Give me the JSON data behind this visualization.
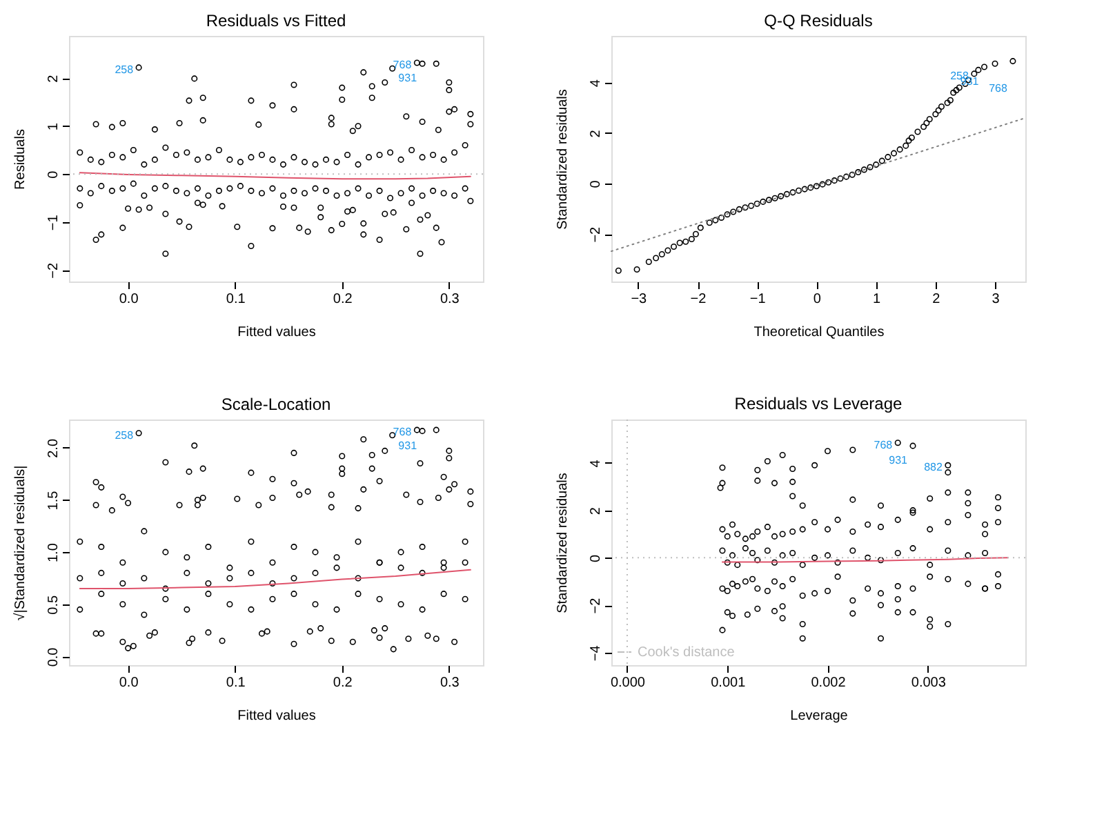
{
  "chart_data": [
    {
      "type": "scatter",
      "title": "Residuals vs Fitted",
      "xlabel": "Fitted values",
      "ylabel": "Residuals",
      "grid": false,
      "xlim": [
        -0.0552,
        0.3317
      ],
      "ylim": [
        -2.24,
        2.88
      ],
      "xticks": [
        {
          "value": 0,
          "label": "0.0"
        },
        {
          "value": 0.1,
          "label": "0.1"
        },
        {
          "value": 0.2,
          "label": "0.2"
        },
        {
          "value": 0.3,
          "label": "0.3"
        }
      ],
      "yticks": [
        -2,
        -1,
        0,
        1,
        2
      ],
      "ref_lines": [
        {
          "axis": "y",
          "value": 0,
          "color": "#bebebe",
          "line_style": "dotted"
        }
      ],
      "annotations": [
        {
          "text": "258",
          "x": 0.01,
          "y": 2.22
        },
        {
          "text": "768",
          "x": 0.27,
          "y": 2.32
        },
        {
          "text": "931",
          "x": 0.275,
          "y": 2.3
        }
      ],
      "series": [
        {
          "type": "scatter",
          "color": "#000000",
          "x": [
            0.01,
            0.062,
            0.057,
            0.07,
            0.155,
            0.155,
            0.115,
            0.135,
            0.2,
            0.2,
            0.22,
            0.228,
            0.228,
            0.24,
            0.247,
            0.27,
            0.275,
            0.288,
            0.3,
            0.3,
            0.305,
            0.3,
            0.32,
            0.32,
            -0.03,
            -0.015,
            -0.005,
            0.048,
            0.122,
            0.19,
            0.19,
            0.21,
            0.215,
            0.26,
            0.275,
            0.29,
            0.07,
            0.025,
            -0.03,
            -0.025,
            -0.005,
            0.035,
            0.048,
            0.057,
            0.102,
            0.115,
            0.135,
            0.16,
            0.168,
            0.18,
            0.19,
            0.2,
            0.22,
            0.22,
            0.235,
            0.26,
            0.273,
            0.273,
            0.288,
            0.293,
            0.24,
            0.035,
            -0.045,
            0.0,
            0.01,
            0.02,
            0.065,
            0.07,
            0.088,
            0.145,
            0.155,
            0.18,
            0.205,
            0.21,
            0.248,
            0.265,
            0.28,
            0.32,
            -0.045,
            -0.035,
            -0.025,
            -0.015,
            -0.005,
            0.005,
            0.015,
            0.025,
            0.035,
            0.045,
            0.055,
            0.065,
            0.075,
            0.085,
            0.095,
            0.105,
            0.115,
            0.125,
            0.135,
            0.145,
            0.155,
            0.165,
            0.175,
            0.185,
            0.195,
            0.205,
            0.215,
            0.225,
            0.235,
            0.245,
            0.255,
            0.265,
            0.275,
            0.285,
            0.295,
            0.305,
            0.315,
            -0.045,
            -0.035,
            -0.025,
            -0.015,
            -0.005,
            0.005,
            0.015,
            0.025,
            0.035,
            0.045,
            0.055,
            0.065,
            0.075,
            0.085,
            0.095,
            0.105,
            0.115,
            0.125,
            0.135,
            0.145,
            0.155,
            0.165,
            0.175,
            0.185,
            0.195,
            0.205,
            0.215,
            0.225,
            0.235,
            0.245,
            0.255,
            0.265,
            0.275,
            0.285,
            0.295,
            0.305,
            0.315
          ],
          "values": [
            2.22,
            1.99,
            1.53,
            1.59,
            1.86,
            1.35,
            1.53,
            1.43,
            1.8,
            1.55,
            2.12,
            1.83,
            1.59,
            1.91,
            2.2,
            2.32,
            2.3,
            2.3,
            1.91,
            1.75,
            1.35,
            1.3,
            1.25,
            1.04,
            1.04,
            0.98,
            1.06,
            1.06,
            1.03,
            1.17,
            1.04,
            0.9,
            1.0,
            1.2,
            1.09,
            0.92,
            1.12,
            0.93,
            -1.37,
            -1.26,
            -1.12,
            -1.66,
            -0.99,
            -1.1,
            -1.1,
            -1.5,
            -1.13,
            -1.12,
            -1.2,
            -0.9,
            -1.17,
            -1.04,
            -1.26,
            -1.03,
            -1.37,
            -1.15,
            -1.66,
            -0.95,
            -1.12,
            -1.42,
            -0.83,
            -0.83,
            -0.65,
            -0.72,
            -0.74,
            -0.7,
            -0.6,
            -0.64,
            -0.67,
            -0.68,
            -0.7,
            -0.7,
            -0.78,
            -0.75,
            -0.8,
            -0.6,
            -0.86,
            -0.56,
            0.45,
            0.3,
            0.25,
            0.4,
            0.35,
            0.5,
            0.2,
            0.3,
            0.55,
            0.4,
            0.45,
            0.3,
            0.35,
            0.5,
            0.3,
            0.25,
            0.35,
            0.4,
            0.3,
            0.2,
            0.35,
            0.25,
            0.2,
            0.3,
            0.25,
            0.4,
            0.2,
            0.35,
            0.4,
            0.45,
            0.3,
            0.5,
            0.35,
            0.4,
            0.3,
            0.45,
            0.6,
            -0.3,
            -0.4,
            -0.25,
            -0.35,
            -0.3,
            -0.2,
            -0.45,
            -0.3,
            -0.25,
            -0.35,
            -0.4,
            -0.3,
            -0.45,
            -0.35,
            -0.3,
            -0.25,
            -0.35,
            -0.4,
            -0.3,
            -0.45,
            -0.35,
            -0.4,
            -0.3,
            -0.35,
            -0.45,
            -0.4,
            -0.3,
            -0.45,
            -0.35,
            -0.5,
            -0.4,
            -0.3,
            -0.45,
            -0.35,
            -0.4,
            -0.45,
            -0.3
          ]
        },
        {
          "type": "line",
          "color": "#df536b",
          "line_style": "solid",
          "x": [
            -0.045,
            0.0,
            0.05,
            0.1,
            0.15,
            0.2,
            0.25,
            0.28,
            0.32
          ],
          "values": [
            0.03,
            -0.01,
            -0.03,
            -0.05,
            -0.08,
            -0.1,
            -0.1,
            -0.09,
            -0.05
          ]
        }
      ]
    },
    {
      "type": "scatter",
      "title": "Q-Q Residuals",
      "xlabel": "Theoretical Quantiles",
      "ylabel": "Standardized residuals",
      "grid": false,
      "xlim": [
        -3.45,
        3.51
      ],
      "ylim": [
        -3.88,
        5.85
      ],
      "xticks": [
        -3,
        -2,
        -1,
        0,
        1,
        2,
        3
      ],
      "yticks": [
        -2,
        0,
        2,
        4
      ],
      "annotations": [
        {
          "text": "258",
          "x": 2.65,
          "y": 4.35
        },
        {
          "text": "931",
          "x": 2.82,
          "y": 4.62
        },
        {
          "text": "768",
          "x": 3.3,
          "y": 4.85
        }
      ],
      "series": [
        {
          "type": "scatter",
          "color": "#000000",
          "x": [
            -3.33,
            -3.02,
            -2.82,
            -2.7,
            -2.6,
            -2.5,
            -2.4,
            -2.3,
            -2.2,
            -2.1,
            -2.03,
            -1.95,
            -1.8,
            -1.7,
            -1.6,
            -1.5,
            -1.4,
            -1.3,
            -1.2,
            -1.1,
            -1.0,
            -0.9,
            -0.8,
            -0.7,
            -0.6,
            -0.5,
            -0.4,
            -0.3,
            -0.2,
            -0.1,
            0,
            0.1,
            0.2,
            0.3,
            0.4,
            0.5,
            0.6,
            0.7,
            0.8,
            0.9,
            1.0,
            1.1,
            1.2,
            1.3,
            1.4,
            1.5,
            1.55,
            1.6,
            1.7,
            1.8,
            1.85,
            1.9,
            2.0,
            2.05,
            2.1,
            2.2,
            2.25,
            2.3,
            2.35,
            2.4,
            2.5,
            2.55,
            2.65,
            2.72,
            2.82,
            3.0,
            3.3
          ],
          "values": [
            -3.45,
            -3.4,
            -3.1,
            -2.95,
            -2.8,
            -2.65,
            -2.5,
            -2.35,
            -2.3,
            -2.2,
            -2.0,
            -1.75,
            -1.55,
            -1.45,
            -1.35,
            -1.22,
            -1.12,
            -1.02,
            -0.95,
            -0.88,
            -0.8,
            -0.72,
            -0.65,
            -0.58,
            -0.5,
            -0.42,
            -0.35,
            -0.28,
            -0.22,
            -0.16,
            -0.1,
            -0.03,
            0.05,
            0.12,
            0.2,
            0.27,
            0.35,
            0.45,
            0.55,
            0.65,
            0.75,
            0.9,
            1.05,
            1.2,
            1.35,
            1.5,
            1.7,
            1.82,
            2.05,
            2.25,
            2.4,
            2.55,
            2.75,
            2.9,
            3.05,
            3.2,
            3.3,
            3.6,
            3.7,
            3.8,
            3.95,
            4.1,
            4.35,
            4.5,
            4.62,
            4.75,
            4.85
          ]
        },
        {
          "type": "line",
          "color": "#808080",
          "line_style": "dotted",
          "x": [
            -3.45,
            3.51
          ],
          "values": [
            -2.68,
            2.6
          ]
        }
      ]
    },
    {
      "type": "scatter",
      "title": "Scale-Location",
      "xlabel": "Fitted values",
      "ylabel": "√|Standardized residuals|",
      "grid": false,
      "xlim": [
        -0.0552,
        0.3317
      ],
      "ylim": [
        -0.083,
        2.27
      ],
      "xticks": [
        {
          "value": 0,
          "label": "0.0"
        },
        {
          "value": 0.1,
          "label": "0.1"
        },
        {
          "value": 0.2,
          "label": "0.2"
        },
        {
          "value": 0.3,
          "label": "0.3"
        }
      ],
      "yticks": [
        {
          "value": 0,
          "label": "0.0"
        },
        {
          "value": 0.5,
          "label": "0.5"
        },
        {
          "value": 1,
          "label": "1.0"
        },
        {
          "value": 1.5,
          "label": "1.5"
        },
        {
          "value": 2,
          "label": "2.0"
        }
      ],
      "annotations": [
        {
          "text": "258",
          "x": 0.01,
          "y": 2.14
        },
        {
          "text": "768",
          "x": 0.27,
          "y": 2.17
        },
        {
          "text": "931",
          "x": 0.275,
          "y": 2.16
        }
      ],
      "series": [
        {
          "type": "scatter",
          "color": "#000000",
          "x": [
            0.01,
            0.062,
            0.035,
            0.057,
            0.07,
            0.155,
            0.155,
            0.115,
            0.135,
            0.2,
            0.2,
            0.2,
            0.22,
            0.228,
            0.228,
            0.235,
            0.24,
            0.247,
            0.27,
            0.275,
            0.288,
            0.3,
            0.3,
            0.305,
            0.295,
            0.32,
            0.32,
            -0.03,
            -0.025,
            -0.03,
            -0.015,
            -0.005,
            0.0,
            0.048,
            0.065,
            0.065,
            0.07,
            0.102,
            0.122,
            0.135,
            0.16,
            0.168,
            0.19,
            0.19,
            0.215,
            0.22,
            0.26,
            0.273,
            0.273,
            0.29,
            0.3,
            -0.005,
            0.0,
            0.005,
            0.057,
            0.06,
            0.088,
            0.155,
            0.19,
            0.21,
            0.235,
            0.248,
            0.262,
            0.28,
            0.288,
            0.305,
            -0.03,
            -0.025,
            0.02,
            0.025,
            0.075,
            0.125,
            0.13,
            0.17,
            0.18,
            0.23,
            0.24,
            -0.045,
            -0.025,
            -0.005,
            0.015,
            0.035,
            0.055,
            0.075,
            0.095,
            0.115,
            0.135,
            0.155,
            0.175,
            0.195,
            0.215,
            0.235,
            0.255,
            0.275,
            0.295,
            0.315,
            -0.045,
            -0.025,
            -0.005,
            0.015,
            0.035,
            0.055,
            0.075,
            0.095,
            0.115,
            0.135,
            0.155,
            0.175,
            0.195,
            0.215,
            0.235,
            0.255,
            0.275,
            0.295,
            0.315,
            -0.045,
            -0.025,
            -0.005,
            0.015,
            0.035,
            0.055,
            0.075,
            0.095,
            0.115,
            0.135,
            0.155,
            0.175,
            0.195,
            0.215,
            0.235,
            0.255,
            0.275,
            0.295,
            0.315
          ],
          "values": [
            2.14,
            2.02,
            1.86,
            1.77,
            1.8,
            1.95,
            1.66,
            1.76,
            1.7,
            1.92,
            1.8,
            1.75,
            2.08,
            1.93,
            1.8,
            1.68,
            1.97,
            2.12,
            2.17,
            2.16,
            2.17,
            1.97,
            1.9,
            1.65,
            1.72,
            1.58,
            1.46,
            1.67,
            1.62,
            1.45,
            1.4,
            1.53,
            1.47,
            1.45,
            1.5,
            1.45,
            1.52,
            1.51,
            1.45,
            1.52,
            1.55,
            1.58,
            1.55,
            1.43,
            1.42,
            1.6,
            1.55,
            1.48,
            1.85,
            1.52,
            1.6,
            0.14,
            0.08,
            0.1,
            0.13,
            0.17,
            0.15,
            0.12,
            0.15,
            0.14,
            0.18,
            0.07,
            0.17,
            0.2,
            0.17,
            0.14,
            0.22,
            0.22,
            0.2,
            0.23,
            0.23,
            0.22,
            0.24,
            0.24,
            0.27,
            0.25,
            0.27,
            1.1,
            1.05,
            0.9,
            1.2,
            1.0,
            0.95,
            1.05,
            0.85,
            1.1,
            0.9,
            1.05,
            1.0,
            0.95,
            1.1,
            0.9,
            1.0,
            1.05,
            0.9,
            1.1,
            0.45,
            0.6,
            0.5,
            0.4,
            0.55,
            0.45,
            0.6,
            0.5,
            0.45,
            0.55,
            0.6,
            0.5,
            0.45,
            0.6,
            0.55,
            0.5,
            0.45,
            0.6,
            0.55,
            0.75,
            0.8,
            0.7,
            0.75,
            0.65,
            0.8,
            0.7,
            0.75,
            0.8,
            0.7,
            0.75,
            0.8,
            0.85,
            0.75,
            0.9,
            0.85,
            0.8,
            0.85,
            0.9
          ]
        },
        {
          "type": "line",
          "color": "#df536b",
          "line_style": "solid",
          "x": [
            -0.045,
            0.0,
            0.05,
            0.1,
            0.15,
            0.2,
            0.25,
            0.32
          ],
          "values": [
            0.65,
            0.65,
            0.66,
            0.67,
            0.7,
            0.74,
            0.77,
            0.83
          ]
        }
      ]
    },
    {
      "type": "scatter",
      "title": "Residuals vs Leverage",
      "xlabel": "Leverage",
      "ylabel": "Standardized residuals",
      "grid": false,
      "xlim": [
        -0.000158,
        0.003972
      ],
      "ylim": [
        -4.53,
        5.83
      ],
      "xticks": [
        {
          "value": 0,
          "label": "0.000"
        },
        {
          "value": 0.001,
          "label": "0.001"
        },
        {
          "value": 0.002,
          "label": "0.002"
        },
        {
          "value": 0.003,
          "label": "0.003"
        }
      ],
      "yticks": [
        -4,
        -2,
        0,
        2,
        4
      ],
      "legend": "bottom left",
      "ref_lines": [
        {
          "axis": "y",
          "value": 0,
          "color": "#bebebe",
          "line_style": "dotted"
        },
        {
          "axis": "x",
          "value": 0,
          "color": "#bebebe",
          "line_style": "dotted"
        }
      ],
      "annotations": [
        {
          "text": "768",
          "x": 0.0027,
          "y": 4.85
        },
        {
          "text": "931",
          "x": 0.00285,
          "y": 4.72
        },
        {
          "text": "882",
          "x": 0.0032,
          "y": 3.9
        }
      ],
      "series": [
        {
          "type": "scatter",
          "color": "#000000",
          "x": [
            0.00095,
            0.00095,
            0.00095,
            0.00093,
            0.001,
            0.00105,
            0.0012,
            0.0013,
            0.0013,
            0.0013,
            0.0014,
            0.00147,
            0.00147,
            0.00155,
            0.00155,
            0.00155,
            0.00165,
            0.00165,
            0.00165,
            0.00175,
            0.00175,
            0.00175,
            0.00187,
            0.002,
            0.00225,
            0.00225,
            0.00225,
            0.00253,
            0.00253,
            0.00253,
            0.0027,
            0.00285,
            0.0032,
            0.0032,
            0.0032,
            0.0032,
            0.00302,
            0.00302,
            0.00302,
            0.0034,
            0.0034,
            0.0037,
            0.0037,
            0.0037,
            0.0037,
            0.0037,
            0.00357,
            0.00357,
            0.0027,
            0.0027,
            0.00285,
            0.00285,
            0.00095,
            0.001,
            0.00105,
            0.0011,
            0.00118,
            0.00125,
            0.0013,
            0.0014,
            0.00147,
            0.00155,
            0.00165,
            0.00175,
            0.00187,
            0.002,
            0.0021,
            0.00225,
            0.0024,
            0.00253,
            0.0027,
            0.00285,
            0.00302,
            0.0032,
            0.0034,
            0.00357,
            0.00095,
            0.001,
            0.00105,
            0.0011,
            0.00118,
            0.00125,
            0.0013,
            0.0014,
            0.00147,
            0.00155,
            0.00165,
            0.00175,
            0.00187,
            0.002,
            0.0021,
            0.00225,
            0.0024,
            0.00253,
            0.0027,
            0.00285,
            0.00302,
            0.0032,
            0.0034,
            0.00357,
            0.00095,
            0.001,
            0.00105,
            0.0011,
            0.00118,
            0.00125,
            0.0013,
            0.0014,
            0.00147,
            0.00155,
            0.00165,
            0.00175,
            0.00187,
            0.002,
            0.0021,
            0.00225,
            0.0024,
            0.00253,
            0.0027,
            0.00285,
            0.00302,
            0.0032,
            0.0034,
            0.00357
          ],
          "values": [
            -3.05,
            3.8,
            3.15,
            2.95,
            -2.3,
            -2.45,
            -2.4,
            3.7,
            3.25,
            -2.15,
            4.07,
            3.15,
            -2.25,
            4.33,
            -2.55,
            -2.05,
            3.75,
            3.2,
            2.6,
            2.2,
            -2.8,
            -3.4,
            3.9,
            4.5,
            4.55,
            2.45,
            -2.35,
            2.2,
            -3.4,
            -2.0,
            4.85,
            4.72,
            3.9,
            3.6,
            2.75,
            -2.8,
            2.5,
            -2.6,
            -2.9,
            2.75,
            2.3,
            2.55,
            2.1,
            1.5,
            -1.2,
            -0.7,
            1.4,
            -1.3,
            -2.3,
            -1.75,
            -2.3,
            2.0,
            1.2,
            0.9,
            1.4,
            1.0,
            0.8,
            0.9,
            1.1,
            1.3,
            0.9,
            1.0,
            1.1,
            1.2,
            1.5,
            1.2,
            1.6,
            1.1,
            1.4,
            1.3,
            1.6,
            1.9,
            1.2,
            1.5,
            1.8,
            1.0,
            -1.3,
            -1.4,
            -1.1,
            -1.2,
            -1.0,
            -0.9,
            -1.3,
            -1.4,
            -1.0,
            -1.2,
            -0.9,
            -1.6,
            -1.5,
            -1.4,
            -0.8,
            -1.8,
            -1.3,
            -1.5,
            -1.2,
            -1.3,
            -0.8,
            -0.9,
            -1.1,
            -1.3,
            0.3,
            -0.2,
            0.1,
            -0.3,
            0.4,
            0.2,
            -0.1,
            0.3,
            -0.2,
            0.1,
            0.2,
            -0.3,
            0.0,
            0.1,
            -0.2,
            0.3,
            0.0,
            -0.1,
            0.2,
            0.4,
            -0.3,
            0.3,
            0.1,
            0.2
          ]
        },
        {
          "type": "line",
          "color": "#df536b",
          "line_style": "solid",
          "x": [
            0.00095,
            0.0015,
            0.002,
            0.0025,
            0.0028,
            0.0032,
            0.0035,
            0.0038
          ],
          "values": [
            -0.18,
            -0.18,
            -0.15,
            -0.13,
            -0.1,
            -0.07,
            -0.02,
            0.0
          ]
        },
        {
          "type": "line",
          "name": "Cook's distance",
          "color": "#bebebe",
          "line_style": "dashed"
        }
      ]
    }
  ]
}
